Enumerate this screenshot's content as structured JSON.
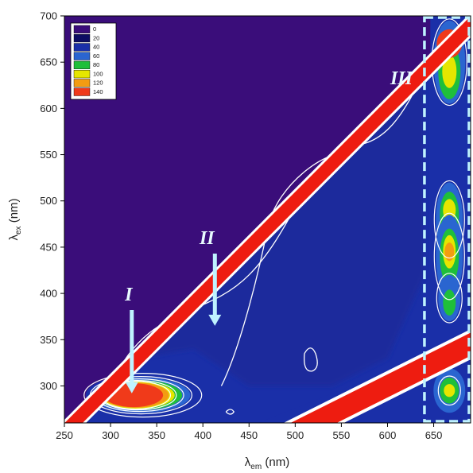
{
  "chart_data": {
    "type": "heatmap",
    "title": "",
    "xlabel": {
      "main": "λ",
      "sub": "em",
      "unit": " (nm)"
    },
    "ylabel": {
      "main": "λ",
      "sub": "ex",
      "unit": " (nm)"
    },
    "xlim": [
      250,
      690
    ],
    "ylim": [
      260,
      700
    ],
    "xticks": [
      250,
      300,
      350,
      400,
      450,
      500,
      550,
      600,
      650
    ],
    "yticks": [
      300,
      350,
      400,
      450,
      500,
      550,
      600,
      650,
      700
    ],
    "legend": {
      "placement": "top-left",
      "levels": [
        0,
        20,
        40,
        60,
        80,
        100,
        120,
        140
      ],
      "colors": [
        "#3a0d7a",
        "#0d0d63",
        "#1a2fa8",
        "#2a65d0",
        "#1fbf3a",
        "#e6e600",
        "#f39c12",
        "#f03a1a"
      ]
    },
    "background_color": "#3a0d7a",
    "peaks": [
      {
        "label": "I",
        "em": 330,
        "ex": 290,
        "arrow_from_ex": 382,
        "arrow_to_ex": 292,
        "arrow_em": 323
      },
      {
        "label": "II",
        "em": 410,
        "ex": 360,
        "arrow_from_ex": 443,
        "arrow_to_ex": 365,
        "arrow_em": 413
      },
      {
        "label": "III",
        "em": 665,
        "ex": 640
      }
    ],
    "region_III_box": {
      "em_range": [
        640,
        690
      ],
      "ex_range": [
        260,
        700
      ]
    },
    "scatter_bands": [
      {
        "name": "Rayleigh first-order",
        "relation": "ex = em"
      },
      {
        "name": "Rayleigh second-order",
        "relation": "ex = em / 2"
      }
    ]
  }
}
